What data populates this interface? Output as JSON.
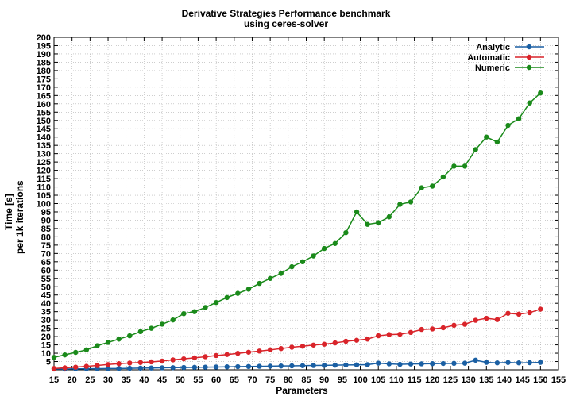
{
  "chart_data": {
    "type": "line",
    "title": "Derivative Strategies Performance benchmark",
    "subtitle": "using ceres-solver",
    "xlabel": "Parameters",
    "ylabel": [
      "Time [s]",
      "per 1k iterations"
    ],
    "xlim": [
      15,
      155
    ],
    "ylim": [
      0,
      200
    ],
    "xticks": [
      15,
      20,
      25,
      30,
      35,
      40,
      45,
      50,
      55,
      60,
      65,
      70,
      75,
      80,
      85,
      90,
      95,
      100,
      105,
      110,
      115,
      120,
      125,
      130,
      135,
      140,
      145,
      150,
      155
    ],
    "yticks": [
      5,
      10,
      15,
      20,
      25,
      30,
      35,
      40,
      45,
      50,
      55,
      60,
      65,
      70,
      75,
      80,
      85,
      90,
      95,
      100,
      105,
      110,
      115,
      120,
      125,
      130,
      135,
      140,
      145,
      150,
      155,
      160,
      165,
      170,
      175,
      180,
      185,
      190,
      195,
      200
    ],
    "grid": true,
    "legend_position": "top-right",
    "x": [
      15,
      18,
      21,
      24,
      27,
      30,
      33,
      36,
      39,
      42,
      45,
      48,
      51,
      54,
      57,
      60,
      63,
      66,
      69,
      72,
      75,
      78,
      81,
      84,
      87,
      90,
      93,
      96,
      99,
      102,
      105,
      108,
      111,
      114,
      117,
      120,
      123,
      126,
      129,
      132,
      135,
      138,
      141,
      144,
      147,
      150
    ],
    "series": [
      {
        "name": "Analytic",
        "color": "#1a5fa3",
        "values": [
          0.5,
          0.5,
          0.6,
          0.6,
          0.7,
          0.8,
          0.8,
          0.9,
          1,
          1.1,
          1.2,
          1.3,
          1.4,
          1.5,
          1.6,
          1.7,
          1.8,
          1.9,
          2,
          2.1,
          2.2,
          2.3,
          2.4,
          2.5,
          2.6,
          2.7,
          2.8,
          2.9,
          3,
          3.1,
          4,
          3.6,
          3.3,
          3.5,
          3.6,
          3.7,
          3.8,
          3.9,
          4,
          5.8,
          4.5,
          4.2,
          4.4,
          4.2,
          4.3,
          4.5
        ]
      },
      {
        "name": "Automatic",
        "color": "#d9242a",
        "values": [
          0.8,
          1.2,
          1.6,
          2.1,
          2.6,
          3.2,
          3.7,
          4.1,
          4.4,
          4.8,
          5.3,
          6,
          6.6,
          7.2,
          7.9,
          8.6,
          9.2,
          9.9,
          10.6,
          11.3,
          12,
          12.8,
          13.6,
          14.2,
          14.9,
          15.4,
          16.2,
          17.2,
          17.8,
          18.5,
          20.5,
          21.2,
          21.4,
          22.5,
          24.3,
          24.6,
          25.3,
          26.8,
          27.4,
          29.8,
          31,
          30.2,
          34,
          33.5,
          34.4,
          36.5
        ]
      },
      {
        "name": "Numeric",
        "color": "#1a8a1a",
        "values": [
          7.5,
          9,
          10.5,
          12,
          14.5,
          16.5,
          18.5,
          20.5,
          23,
          25,
          27.5,
          30,
          33.8,
          35,
          37.5,
          40.5,
          43.5,
          46,
          48.5,
          52,
          55,
          58,
          62,
          65,
          68.5,
          73,
          76,
          82.5,
          95,
          87.5,
          88.5,
          92,
          99.5,
          101,
          109.5,
          110.5,
          116,
          122.5,
          122.5,
          132.5,
          140,
          137,
          147,
          151,
          160.5,
          166.5
        ]
      }
    ]
  }
}
